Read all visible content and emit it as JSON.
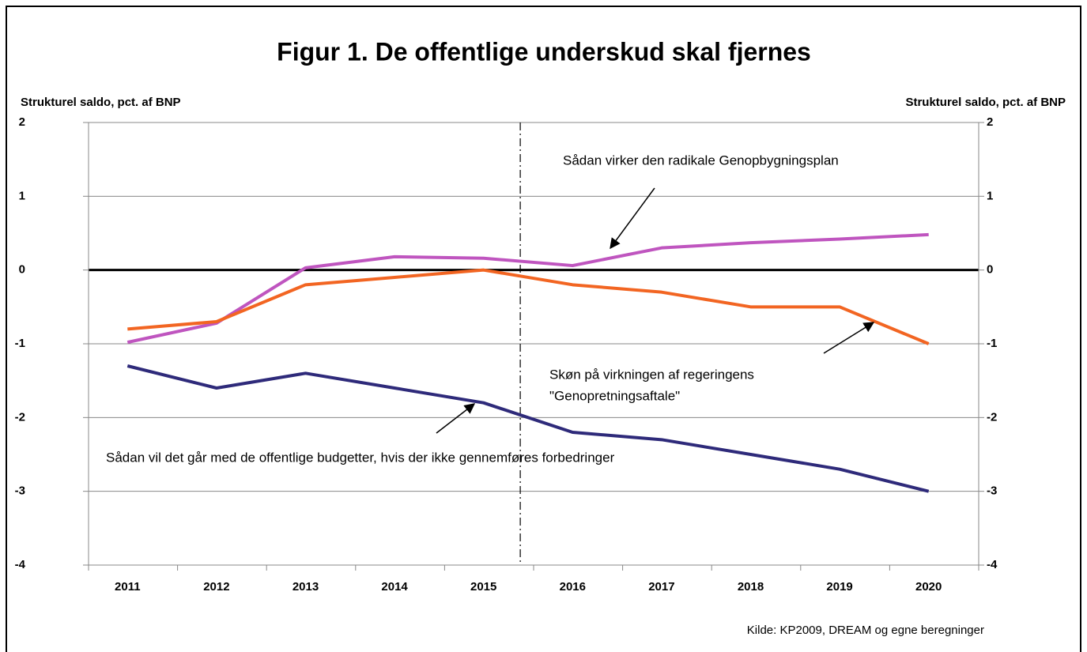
{
  "chart_data": {
    "type": "line",
    "title": "Figur 1. De offentlige underskud skal fjernes",
    "y_label": "Strukturel saldo, pct. af BNP",
    "y2_label": "Strukturel saldo, pct. af BNP",
    "source": "Kilde: KP2009, DREAM og egne beregninger",
    "annotations": [
      "Sådan virker den radikale Genopbygningsplan",
      "Skøn på virkningen af regeringens",
      "\"Genopretningsaftale\"",
      "Sådan vil det går med de offentlige budgetter, hvis der ikke gennemføres forbedringer"
    ],
    "categories": [
      "2011",
      "2012",
      "2013",
      "2014",
      "2015",
      "2016",
      "2017",
      "2018",
      "2019",
      "2020"
    ],
    "series": [
      {
        "color": "#bf55bf",
        "values": [
          -0.98,
          -0.72,
          0.03,
          0.18,
          0.16,
          0.06,
          0.3,
          0.37,
          0.42,
          0.48
        ]
      },
      {
        "color": "#f26522",
        "values": [
          -0.8,
          -0.7,
          -0.2,
          -0.1,
          0,
          -0.2,
          -0.3,
          -0.5,
          -0.5,
          -1.0
        ]
      },
      {
        "color": "#2e2a7a",
        "values": [
          -1.3,
          -1.6,
          -1.4,
          -1.6,
          -1.8,
          -2.2,
          -2.3,
          -2.5,
          -2.7,
          -3.0
        ]
      }
    ],
    "ylim": [
      -4,
      2
    ],
    "yticks": [
      -4,
      -3,
      -2,
      -1,
      0,
      1,
      2
    ],
    "y2lim": [
      -4,
      2
    ],
    "y2ticks": [
      -4,
      -3,
      -2,
      -1,
      0,
      1,
      2
    ],
    "grid": true
  }
}
